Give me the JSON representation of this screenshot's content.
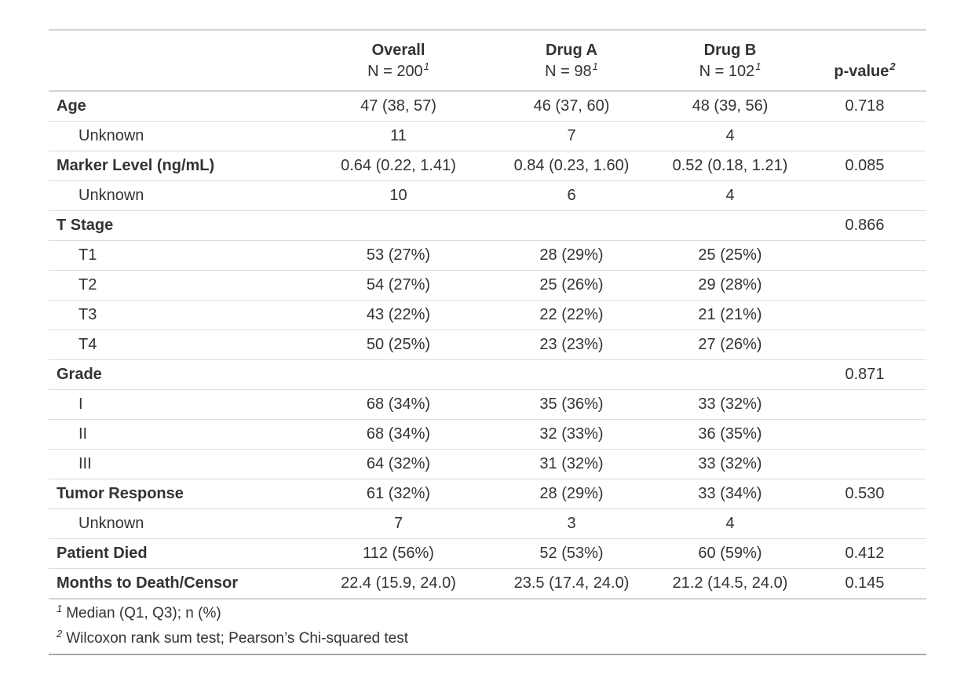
{
  "colors": {
    "text": "#333333",
    "table_top_border": "#d3d3d3",
    "header_bottom_border": "#d3d3d3",
    "row_divider": "#dedede",
    "table_bottom_border": "#a8a8a8",
    "background": "#ffffff"
  },
  "chart_data": {
    "type": "table",
    "title": "",
    "columns": [
      {
        "title": "",
        "subtitle": "",
        "sup": ""
      },
      {
        "title": "Overall",
        "subtitle": "N = 200",
        "sup": "1"
      },
      {
        "title": "Drug A",
        "subtitle": "N = 98",
        "sup": "1"
      },
      {
        "title": "Drug B",
        "subtitle": "N = 102",
        "sup": "1"
      },
      {
        "title": "p-value",
        "subtitle": "",
        "sup": "2"
      }
    ],
    "rows": [
      {
        "label": "Age",
        "bold": true,
        "indent": false,
        "overall": "47 (38, 57)",
        "drug_a": "46 (37, 60)",
        "drug_b": "48 (39, 56)",
        "p": "0.718"
      },
      {
        "label": "Unknown",
        "bold": false,
        "indent": true,
        "overall": "11",
        "drug_a": "7",
        "drug_b": "4",
        "p": ""
      },
      {
        "label": "Marker Level (ng/mL)",
        "bold": true,
        "indent": false,
        "overall": "0.64 (0.22, 1.41)",
        "drug_a": "0.84 (0.23, 1.60)",
        "drug_b": "0.52 (0.18, 1.21)",
        "p": "0.085"
      },
      {
        "label": "Unknown",
        "bold": false,
        "indent": true,
        "overall": "10",
        "drug_a": "6",
        "drug_b": "4",
        "p": ""
      },
      {
        "label": "T Stage",
        "bold": true,
        "indent": false,
        "overall": "",
        "drug_a": "",
        "drug_b": "",
        "p": "0.866"
      },
      {
        "label": "T1",
        "bold": false,
        "indent": true,
        "overall": "53 (27%)",
        "drug_a": "28 (29%)",
        "drug_b": "25 (25%)",
        "p": ""
      },
      {
        "label": "T2",
        "bold": false,
        "indent": true,
        "overall": "54 (27%)",
        "drug_a": "25 (26%)",
        "drug_b": "29 (28%)",
        "p": ""
      },
      {
        "label": "T3",
        "bold": false,
        "indent": true,
        "overall": "43 (22%)",
        "drug_a": "22 (22%)",
        "drug_b": "21 (21%)",
        "p": ""
      },
      {
        "label": "T4",
        "bold": false,
        "indent": true,
        "overall": "50 (25%)",
        "drug_a": "23 (23%)",
        "drug_b": "27 (26%)",
        "p": ""
      },
      {
        "label": "Grade",
        "bold": true,
        "indent": false,
        "overall": "",
        "drug_a": "",
        "drug_b": "",
        "p": "0.871"
      },
      {
        "label": "I",
        "bold": false,
        "indent": true,
        "overall": "68 (34%)",
        "drug_a": "35 (36%)",
        "drug_b": "33 (32%)",
        "p": ""
      },
      {
        "label": "II",
        "bold": false,
        "indent": true,
        "overall": "68 (34%)",
        "drug_a": "32 (33%)",
        "drug_b": "36 (35%)",
        "p": ""
      },
      {
        "label": "III",
        "bold": false,
        "indent": true,
        "overall": "64 (32%)",
        "drug_a": "31 (32%)",
        "drug_b": "33 (32%)",
        "p": ""
      },
      {
        "label": "Tumor Response",
        "bold": true,
        "indent": false,
        "overall": "61 (32%)",
        "drug_a": "28 (29%)",
        "drug_b": "33 (34%)",
        "p": "0.530"
      },
      {
        "label": "Unknown",
        "bold": false,
        "indent": true,
        "overall": "7",
        "drug_a": "3",
        "drug_b": "4",
        "p": ""
      },
      {
        "label": "Patient Died",
        "bold": true,
        "indent": false,
        "overall": "112 (56%)",
        "drug_a": "52 (53%)",
        "drug_b": "60 (59%)",
        "p": "0.412"
      },
      {
        "label": "Months to Death/Censor",
        "bold": true,
        "indent": false,
        "overall": "22.4 (15.9, 24.0)",
        "drug_a": "23.5 (17.4, 24.0)",
        "drug_b": "21.2 (14.5, 24.0)",
        "p": "0.145"
      }
    ],
    "footnotes": [
      {
        "mark": "1",
        "text": "Median (Q1, Q3); n (%)"
      },
      {
        "mark": "2",
        "text": "Wilcoxon rank sum test; Pearson’s Chi-squared test"
      }
    ]
  }
}
